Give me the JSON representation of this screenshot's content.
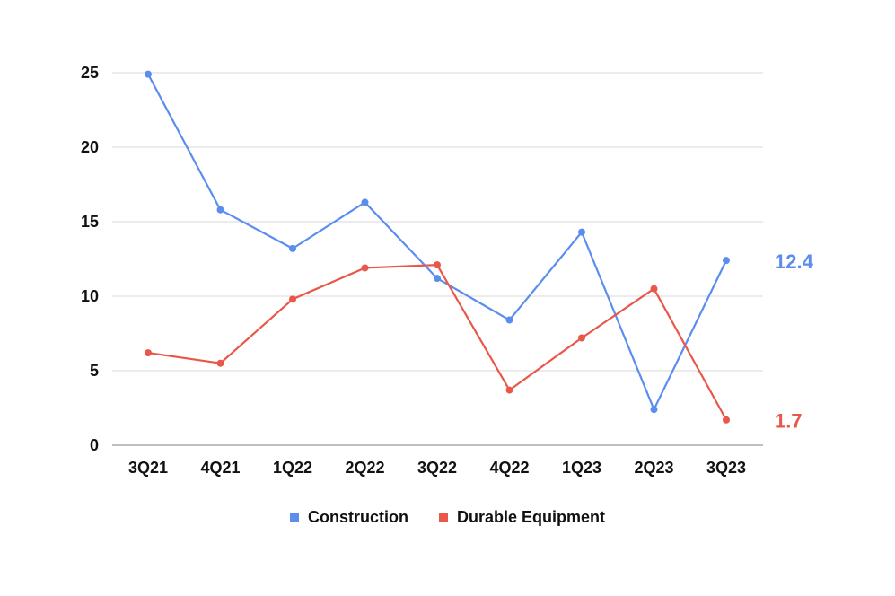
{
  "colors": {
    "construction": "#5b8def",
    "durable_equipment": "#e8574a",
    "grid": "#d9d9d9",
    "axis": "#999999",
    "text": "#111111"
  },
  "chart_data": {
    "type": "line",
    "categories": [
      "3Q21",
      "4Q21",
      "1Q22",
      "2Q22",
      "3Q22",
      "4Q22",
      "1Q23",
      "2Q23",
      "3Q23"
    ],
    "series": [
      {
        "name": "Construction",
        "color": "#5b8def",
        "values": [
          24.9,
          15.8,
          13.2,
          16.3,
          11.2,
          8.4,
          14.3,
          2.4,
          12.4
        ],
        "end_label": "12.4"
      },
      {
        "name": "Durable Equipment",
        "color": "#e8574a",
        "values": [
          6.2,
          5.5,
          9.8,
          11.9,
          12.1,
          3.7,
          7.2,
          10.5,
          1.7
        ],
        "end_label": "1.7"
      }
    ],
    "y_ticks": [
      "0",
      "5",
      "10",
      "15",
      "20",
      "25"
    ],
    "ylim": [
      0,
      25
    ],
    "grid": true,
    "legend_position": "bottom"
  }
}
